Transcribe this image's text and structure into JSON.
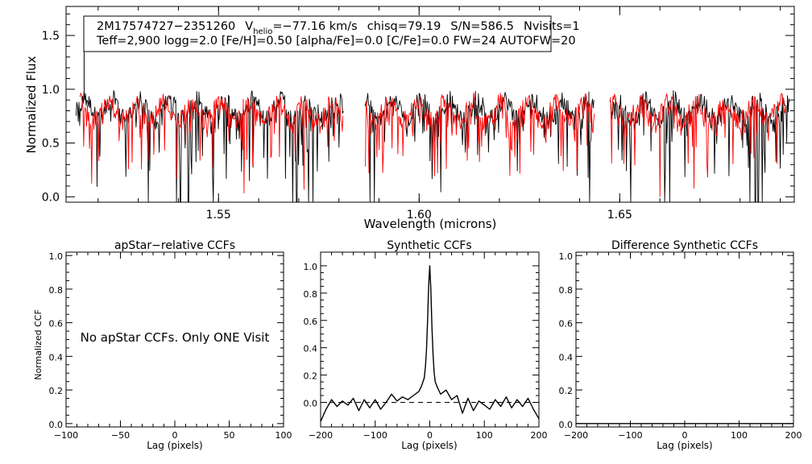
{
  "chart_data": [
    {
      "type": "line",
      "panel": "spectrum",
      "ylabel": "Normalized Flux",
      "xlabel": "Wavelength (microns)",
      "xlim": [
        1.512,
        1.6935
      ],
      "ylim": [
        -0.05,
        1.77
      ],
      "x_ticks": [
        1.55,
        1.6,
        1.65
      ],
      "x_tick_labels": [
        "1.55",
        "1.60",
        "1.65"
      ],
      "y_ticks": [
        0.0,
        0.5,
        1.0,
        1.5
      ],
      "y_tick_labels": [
        "0.0",
        "0.5",
        "1.0",
        "1.5"
      ],
      "chip_gaps": [
        [
          1.5812,
          1.5865
        ],
        [
          1.6437,
          1.6475
        ]
      ],
      "series": [
        {
          "name": "observed spectrum",
          "color": "#000000",
          "continuum": 0.82,
          "x_range": [
            1.5145,
            1.6925
          ]
        },
        {
          "name": "best-fit synthetic",
          "color": "#ff0000",
          "continuum": 0.8,
          "x_range": [
            1.5155,
            1.6915
          ]
        }
      ],
      "deep_lines": [
        1.5325,
        1.5395,
        1.5405,
        1.5425,
        1.5685,
        1.5695,
        1.5725,
        1.5735,
        1.5877,
        1.5888,
        1.6425,
        1.6528,
        1.6612,
        1.6625,
        1.6838,
        1.6845,
        1.6855
      ],
      "annotation": {
        "star": "2M17574727−2351260",
        "v_label": "V",
        "v_sub": "helio",
        "v_value": "=−77.16 km/s",
        "chisq": "chisq=79.19",
        "snr": "S/N=586.5",
        "nvisits": "Nvisits=1",
        "params": "Teff=2,900 logg=2.0 [Fe/H]=0.50 [alpha/Fe]=0.0 [C/Fe]=0.0 FW=24 AUTOFW=20"
      }
    },
    {
      "type": "line",
      "panel": "apstar-ccf",
      "title": "apStar−relative CCFs",
      "xlabel": "Lag (pixels)",
      "ylabel": "Normalized CCF",
      "xlim": [
        -100,
        100
      ],
      "ylim": [
        -0.02,
        1.02
      ],
      "x_ticks": [
        -100,
        -50,
        0,
        50,
        100
      ],
      "x_tick_labels": [
        "−100",
        "−50",
        "0",
        "50",
        "100"
      ],
      "y_ticks": [
        0.0,
        0.2,
        0.4,
        0.6,
        0.8,
        1.0
      ],
      "y_tick_labels": [
        "0.0",
        "0.2",
        "0.4",
        "0.6",
        "0.8",
        "1.0"
      ],
      "message": "No apStar CCFs.  Only ONE Visit",
      "series": []
    },
    {
      "type": "line",
      "panel": "synthetic-ccf",
      "title": "Synthetic CCFs",
      "xlabel": "Lag (pixels)",
      "xlim": [
        -200,
        200
      ],
      "ylim": [
        -0.18,
        1.1
      ],
      "x_ticks": [
        -200,
        -100,
        0,
        100,
        200
      ],
      "x_tick_labels": [
        "−200",
        "−100",
        "0",
        "100",
        "200"
      ],
      "y_ticks": [
        0.0,
        0.2,
        0.4,
        0.6,
        0.8,
        1.0
      ],
      "y_tick_labels": [
        "0.0",
        "0.2",
        "0.4",
        "0.6",
        "0.8",
        "1.0"
      ],
      "zero_line": 0.0,
      "series": [
        {
          "name": "synthetic CCF",
          "color": "#000000",
          "x": [
            -200,
            -190,
            -180,
            -170,
            -160,
            -150,
            -140,
            -130,
            -120,
            -110,
            -100,
            -90,
            -80,
            -70,
            -60,
            -50,
            -40,
            -30,
            -20,
            -15,
            -10,
            -8,
            -6,
            -4,
            -2,
            0,
            2,
            4,
            6,
            8,
            10,
            15,
            20,
            30,
            40,
            50,
            60,
            70,
            80,
            90,
            100,
            110,
            120,
            130,
            140,
            150,
            160,
            170,
            180,
            190,
            200
          ],
          "y": [
            -0.14,
            -0.05,
            0.02,
            -0.03,
            0.01,
            -0.02,
            0.03,
            -0.06,
            0.02,
            -0.04,
            0.02,
            -0.05,
            0.0,
            0.06,
            0.01,
            0.04,
            0.02,
            0.05,
            0.08,
            0.12,
            0.18,
            0.26,
            0.38,
            0.6,
            0.85,
            1.0,
            0.82,
            0.55,
            0.35,
            0.22,
            0.15,
            0.1,
            0.06,
            0.09,
            0.02,
            0.05,
            -0.08,
            0.03,
            -0.06,
            0.01,
            -0.02,
            -0.05,
            0.02,
            -0.03,
            0.04,
            -0.04,
            0.02,
            -0.03,
            0.03,
            -0.05,
            -0.12
          ]
        }
      ]
    },
    {
      "type": "line",
      "panel": "difference-ccf",
      "title": "Difference Synthetic CCFs",
      "xlabel": "Lag (pixels)",
      "xlim": [
        -200,
        200
      ],
      "ylim": [
        -0.02,
        1.02
      ],
      "x_ticks": [
        -200,
        -100,
        0,
        100,
        200
      ],
      "x_tick_labels": [
        "−200",
        "−100",
        "0",
        "100",
        "200"
      ],
      "y_ticks": [
        0.0,
        0.2,
        0.4,
        0.6,
        0.8,
        1.0
      ],
      "y_tick_labels": [
        "0.0",
        "0.2",
        "0.4",
        "0.6",
        "0.8",
        "1.0"
      ],
      "series": [
        {
          "name": "difference CCF",
          "color": "#000000",
          "x": [
            -200,
            200
          ],
          "y": [
            0.0,
            0.0
          ]
        }
      ]
    }
  ]
}
